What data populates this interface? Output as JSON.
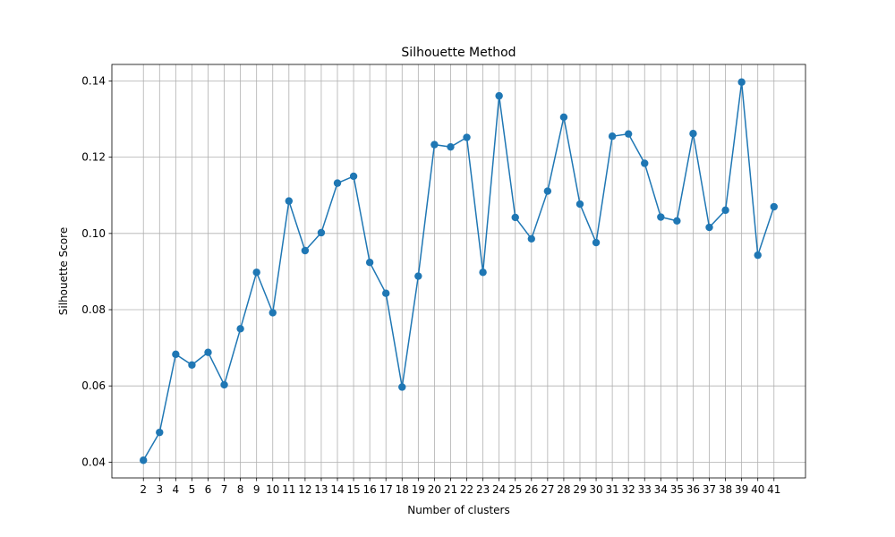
{
  "chart_data": {
    "type": "line",
    "title": "Silhouette Method",
    "xlabel": "Number of clusters",
    "ylabel": "Silhouette Score",
    "x": [
      2,
      3,
      4,
      5,
      6,
      7,
      8,
      9,
      10,
      11,
      12,
      13,
      14,
      15,
      16,
      17,
      18,
      19,
      20,
      21,
      22,
      23,
      24,
      25,
      26,
      27,
      28,
      29,
      30,
      31,
      32,
      33,
      34,
      35,
      36,
      37,
      38,
      39,
      40,
      41
    ],
    "y": [
      0.0405,
      0.0478,
      0.0683,
      0.0655,
      0.0688,
      0.0603,
      0.075,
      0.0898,
      0.0792,
      0.1085,
      0.0955,
      0.1002,
      0.1132,
      0.115,
      0.0924,
      0.0843,
      0.0597,
      0.0888,
      0.1233,
      0.1227,
      0.1252,
      0.0898,
      0.1361,
      0.1042,
      0.0986,
      0.1111,
      0.1305,
      0.1077,
      0.0976,
      0.1255,
      0.1261,
      0.1184,
      0.1043,
      0.1033,
      0.1262,
      0.1016,
      0.1061,
      0.1397,
      0.0943,
      0.107
    ],
    "xlim": [
      0.05,
      42.95
    ],
    "ylim": [
      0.03586,
      0.14434
    ],
    "yticks": [
      0.04,
      0.06,
      0.08,
      0.1,
      0.12,
      0.14
    ],
    "ytick_labels": [
      "0.04",
      "0.06",
      "0.08",
      "0.10",
      "0.12",
      "0.14"
    ],
    "grid": true,
    "marker": "circle",
    "line_color": "#1f77b4"
  }
}
